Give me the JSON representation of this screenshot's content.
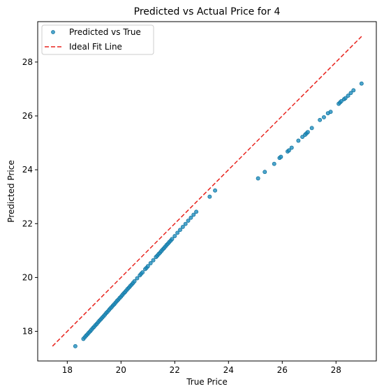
{
  "chart_data": {
    "type": "scatter",
    "title": "Predicted vs Actual Price for 4",
    "xlabel": "True Price",
    "ylabel": "Predicted Price",
    "xlim": [
      16.9,
      29.5
    ],
    "ylim": [
      16.9,
      29.5
    ],
    "xticks": [
      "18",
      "20",
      "22",
      "24",
      "26",
      "28"
    ],
    "yticks": [
      "18",
      "20",
      "22",
      "24",
      "26",
      "28"
    ],
    "grid": false,
    "legend_position": "top-left",
    "colors": {
      "points": "#1f8fbf",
      "points_edge": "#0d6e99",
      "ideal_line": "#e8241e"
    },
    "series": [
      {
        "name": "Predicted vs True",
        "kind": "scatter",
        "x": [
          18.3,
          18.6,
          18.65,
          18.7,
          18.75,
          18.8,
          18.85,
          18.9,
          18.95,
          19.0,
          19.05,
          19.1,
          19.15,
          19.2,
          19.25,
          19.3,
          19.35,
          19.4,
          19.45,
          19.5,
          19.55,
          19.6,
          19.65,
          19.7,
          19.75,
          19.8,
          19.85,
          19.9,
          19.95,
          20.0,
          20.05,
          20.1,
          20.15,
          20.2,
          20.25,
          20.3,
          20.35,
          20.4,
          20.45,
          20.5,
          20.6,
          20.7,
          20.75,
          20.8,
          20.9,
          20.95,
          21.0,
          21.1,
          21.2,
          21.3,
          21.35,
          21.4,
          21.45,
          21.5,
          21.55,
          21.6,
          21.65,
          21.7,
          21.75,
          21.8,
          21.85,
          21.9,
          22.0,
          22.1,
          22.2,
          22.3,
          22.4,
          22.5,
          22.6,
          22.7,
          22.8,
          23.3,
          23.5,
          25.1,
          25.35,
          25.7,
          25.9,
          25.95,
          26.2,
          26.25,
          26.35,
          26.6,
          26.75,
          26.85,
          26.9,
          26.95,
          27.1,
          27.4,
          27.55,
          27.7,
          27.8,
          28.1,
          28.15,
          28.2,
          28.3,
          28.35,
          28.45,
          28.55,
          28.65,
          28.95
        ],
        "y": [
          17.45,
          17.72,
          17.78,
          17.84,
          17.89,
          17.95,
          18.0,
          18.06,
          18.12,
          18.17,
          18.23,
          18.28,
          18.34,
          18.4,
          18.45,
          18.51,
          18.56,
          18.62,
          18.68,
          18.73,
          18.79,
          18.85,
          18.9,
          18.96,
          19.01,
          19.07,
          19.13,
          19.18,
          19.24,
          19.29,
          19.35,
          19.41,
          19.46,
          19.52,
          19.58,
          19.63,
          19.69,
          19.74,
          19.8,
          19.86,
          19.97,
          20.08,
          20.14,
          20.19,
          20.31,
          20.36,
          20.42,
          20.53,
          20.64,
          20.76,
          20.81,
          20.87,
          20.92,
          20.98,
          21.04,
          21.09,
          21.15,
          21.21,
          21.26,
          21.32,
          21.37,
          21.43,
          21.54,
          21.66,
          21.77,
          21.88,
          21.99,
          22.11,
          22.22,
          22.33,
          22.44,
          23.0,
          23.23,
          23.68,
          23.92,
          24.22,
          24.44,
          24.48,
          24.68,
          24.72,
          24.82,
          25.08,
          25.22,
          25.3,
          25.35,
          25.4,
          25.55,
          25.85,
          25.95,
          26.1,
          26.15,
          26.45,
          26.5,
          26.55,
          26.62,
          26.66,
          26.75,
          26.85,
          26.95,
          27.2
        ]
      },
      {
        "name": "Ideal Fit Line",
        "kind": "line",
        "style": "dashed",
        "x": [
          17.45,
          28.95
        ],
        "y": [
          17.45,
          28.95
        ]
      }
    ]
  }
}
